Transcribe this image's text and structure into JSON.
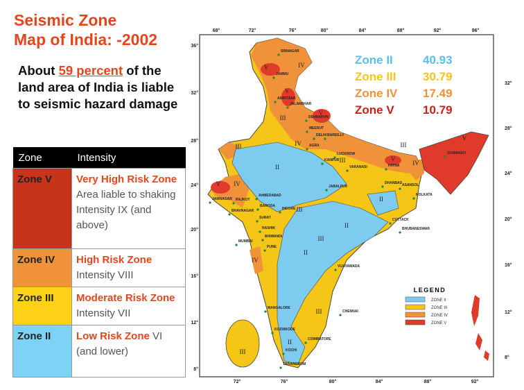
{
  "slide": {
    "title": [
      "Seismic Zone",
      "Map of India: -2002"
    ],
    "intro": {
      "before": "About",
      "highlight": "59 percent",
      "after": "of the land area of India is liable to seismic hazard damage"
    },
    "table": {
      "header": [
        "Zone",
        "Intensity"
      ],
      "rows": [
        {
          "zone": "Zone V",
          "risk": "Very High Risk Zone",
          "detail": "Area liable to shaking Intensity IX (and above)"
        },
        {
          "zone": "Zone IV",
          "risk": "High Risk  Zone",
          "detail": "Intensity VIII"
        },
        {
          "zone": "Zone III",
          "risk": "Moderate Risk Zone",
          "detail": "Intensity VII"
        },
        {
          "zone": "Zone II",
          "risk": "Low Risk Zone",
          "detail": "VI (and lower)"
        }
      ]
    }
  },
  "map": {
    "zone_shares": [
      {
        "zone": "Zone II",
        "share": "40.93"
      },
      {
        "zone": "Zone III",
        "share": "30.79"
      },
      {
        "zone": "Zone IV",
        "share": "17.49"
      },
      {
        "zone": "Zone V",
        "share": "10.79"
      }
    ],
    "legend": {
      "title": "LEGEND",
      "items": [
        "ZONE II",
        "ZONE III",
        "ZONE IV",
        "ZONE V"
      ]
    },
    "lon_top": [
      "68°",
      "72°",
      "76°",
      "80°",
      "84°",
      "88°",
      "92°",
      "96°"
    ],
    "lon_bottom": [
      "72°",
      "76°",
      "80°",
      "84°",
      "88°",
      "92°"
    ],
    "lat_left": [
      "36°",
      "32°",
      "28°",
      "24°",
      "20°",
      "16°",
      "12°",
      "8°"
    ],
    "lat_right": [
      "32°",
      "28°",
      "24°",
      "20°",
      "16°",
      "12°",
      "8°"
    ],
    "cities": [
      "SRINAGAR",
      "JAMMU",
      "AMRITSAR",
      "JALANDHAR",
      "DEHRADUN",
      "MEERUT",
      "DELHI",
      "BAREILLY",
      "AGRA",
      "LUCKNOW",
      "KANPUR",
      "VARANASI",
      "PATNA",
      "GUWAHATI",
      "DHANBAD",
      "ASANSOL",
      "KOLKATA",
      "AHMEDABAD",
      "RAJKOT",
      "JAMNAGAR",
      "BHAVNAGAR",
      "BARODA",
      "INDORE",
      "JABALPUR",
      "SURAT",
      "NASHIK",
      "BHIWANDI",
      "MUMBAI",
      "PUNE",
      "CUTTACK",
      "BHUBANESWAR",
      "VIJAYAWADA",
      "CHENNAI",
      "MANGALORE",
      "KOZHIKODE",
      "COIMBATORE",
      "KOCHI",
      "TRIVANDRUM"
    ],
    "zone_marks": [
      "V",
      "IV",
      "V",
      "III",
      "V",
      "III",
      "IV",
      "II",
      "III",
      "V",
      "III",
      "IV",
      "V",
      "V",
      "IV",
      "II",
      "III",
      "II",
      "III",
      "II",
      "IV",
      "III",
      "II",
      "III"
    ]
  }
}
